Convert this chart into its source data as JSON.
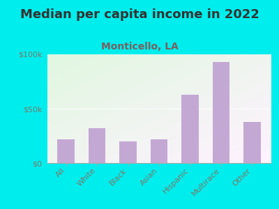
{
  "title": "Median per capita income in 2022",
  "subtitle": "Monticello, LA",
  "categories": [
    "All",
    "White",
    "Black",
    "Asian",
    "Hispanic",
    "Multirace",
    "Other"
  ],
  "values": [
    22000,
    32000,
    20000,
    22000,
    63000,
    93000,
    38000
  ],
  "bar_color": "#c4a8d4",
  "background_outer": "#00EDED",
  "title_color": "#333333",
  "subtitle_color": "#7a6060",
  "tick_color": "#7a7a6a",
  "ylim": [
    0,
    100000
  ],
  "yticks": [
    0,
    50000,
    100000
  ],
  "ytick_labels": [
    "$0",
    "$50k",
    "$100k"
  ],
  "title_fontsize": 13,
  "subtitle_fontsize": 10,
  "tick_fontsize": 8
}
